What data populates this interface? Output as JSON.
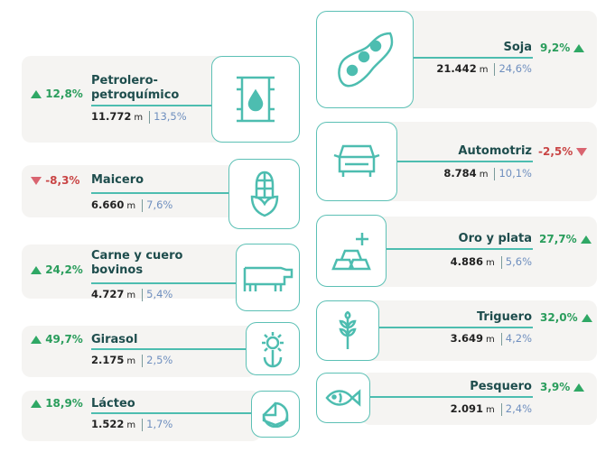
{
  "colors": {
    "accent": "#4dbdb0",
    "up": "#2a9d5c",
    "down": "#c94545",
    "share": "#6f8fbf"
  },
  "unit": "m",
  "left": [
    {
      "name": "Petrolero-\npetroquímico",
      "line1": "Petrolero-",
      "line2": "petroquímico",
      "change": "12,8%",
      "trend": "up",
      "value": "11.772",
      "share": "13,5%",
      "icon": "oil-barrel-icon"
    },
    {
      "name": "Maicero",
      "change": "-8,3%",
      "trend": "down",
      "value": "6.660",
      "share": "7,6%",
      "icon": "corn-icon"
    },
    {
      "line1": "Carne y cuero",
      "line2": "bovinos",
      "change": "24,2%",
      "trend": "up",
      "value": "4.727",
      "share": "5,4%",
      "icon": "cow-icon"
    },
    {
      "name": "Girasol",
      "change": "49,7%",
      "trend": "up",
      "value": "2.175",
      "share": "2,5%",
      "icon": "sunflower-icon"
    },
    {
      "name": "Lácteo",
      "change": "18,9%",
      "trend": "up",
      "value": "1.522",
      "share": "1,7%",
      "icon": "cheese-icon"
    }
  ],
  "right": [
    {
      "name": "Soja",
      "change": "9,2%",
      "trend": "up",
      "value": "21.442",
      "share": "24,6%",
      "icon": "soybean-icon"
    },
    {
      "name": "Automotriz",
      "change": "-2,5%",
      "trend": "down",
      "value": "8.784",
      "share": "10,1%",
      "icon": "car-icon"
    },
    {
      "name": "Oro y plata",
      "change": "27,7%",
      "trend": "up",
      "value": "4.886",
      "share": "5,6%",
      "icon": "gold-bars-icon"
    },
    {
      "name": "Triguero",
      "change": "32,0%",
      "trend": "up",
      "value": "3.649",
      "share": "4,2%",
      "icon": "wheat-icon"
    },
    {
      "name": "Pesquero",
      "change": "3,9%",
      "trend": "up",
      "value": "2.091",
      "share": "2,4%",
      "icon": "fish-icon"
    }
  ]
}
